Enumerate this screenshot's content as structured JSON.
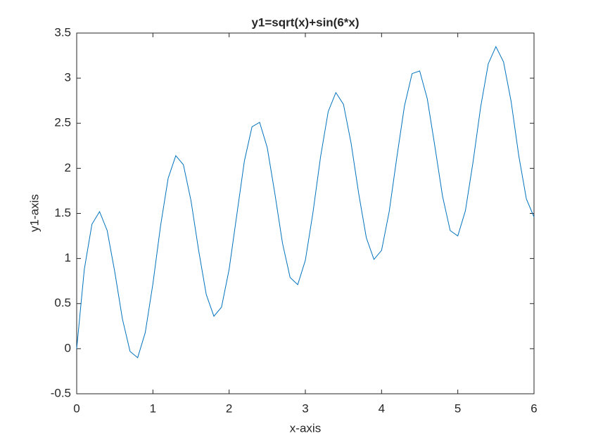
{
  "chart_data": {
    "type": "line",
    "title": "y1=sqrt(x)+sin(6*x)",
    "x_label": "x-axis",
    "y_label": "y1-axis",
    "x": [
      0,
      0.1,
      0.2,
      0.3,
      0.4,
      0.5,
      0.6,
      0.7,
      0.8,
      0.9,
      1,
      1.1,
      1.2,
      1.3,
      1.4,
      1.5,
      1.6,
      1.7,
      1.8,
      1.9,
      2,
      2.1,
      2.2,
      2.3,
      2.4,
      2.5,
      2.6,
      2.7,
      2.8,
      2.9,
      3,
      3.1,
      3.2,
      3.3,
      3.4,
      3.5,
      3.6,
      3.7,
      3.8,
      3.9,
      4,
      4.1,
      4.2,
      4.3,
      4.4,
      4.5,
      4.6,
      4.7,
      4.8,
      4.9,
      5,
      5.1,
      5.2,
      5.3,
      5.4,
      5.5,
      5.6,
      5.7,
      5.8,
      5.9,
      6
    ],
    "series": [
      {
        "color": "#0072bd",
        "values": [
          0,
          0.88,
          1.38,
          1.52,
          1.31,
          0.85,
          0.33,
          -0.03,
          -0.1,
          0.18,
          0.72,
          1.36,
          1.89,
          2.14,
          2.04,
          1.64,
          1.09,
          0.6,
          0.36,
          0.46,
          0.88,
          1.48,
          2.08,
          2.46,
          2.51,
          2.23,
          1.72,
          1.17,
          0.79,
          0.71,
          0.98,
          1.51,
          2.13,
          2.63,
          2.84,
          2.71,
          2.28,
          1.72,
          1.23,
          0.99,
          1.09,
          1.52,
          2.12,
          2.69,
          3.05,
          3.08,
          2.77,
          2.24,
          1.69,
          1.31,
          1.25,
          1.53,
          2.07,
          2.68,
          3.16,
          3.35,
          3.18,
          2.74,
          2.14,
          1.66,
          1.46
        ]
      }
    ],
    "xlim": [
      0,
      6
    ],
    "xticks": [
      0,
      1,
      2,
      3,
      4,
      5,
      6
    ],
    "ylim": [
      -0.5,
      3.5
    ],
    "yticks": [
      -0.5,
      0,
      0.5,
      1,
      1.5,
      2,
      2.5,
      3,
      3.5
    ]
  }
}
